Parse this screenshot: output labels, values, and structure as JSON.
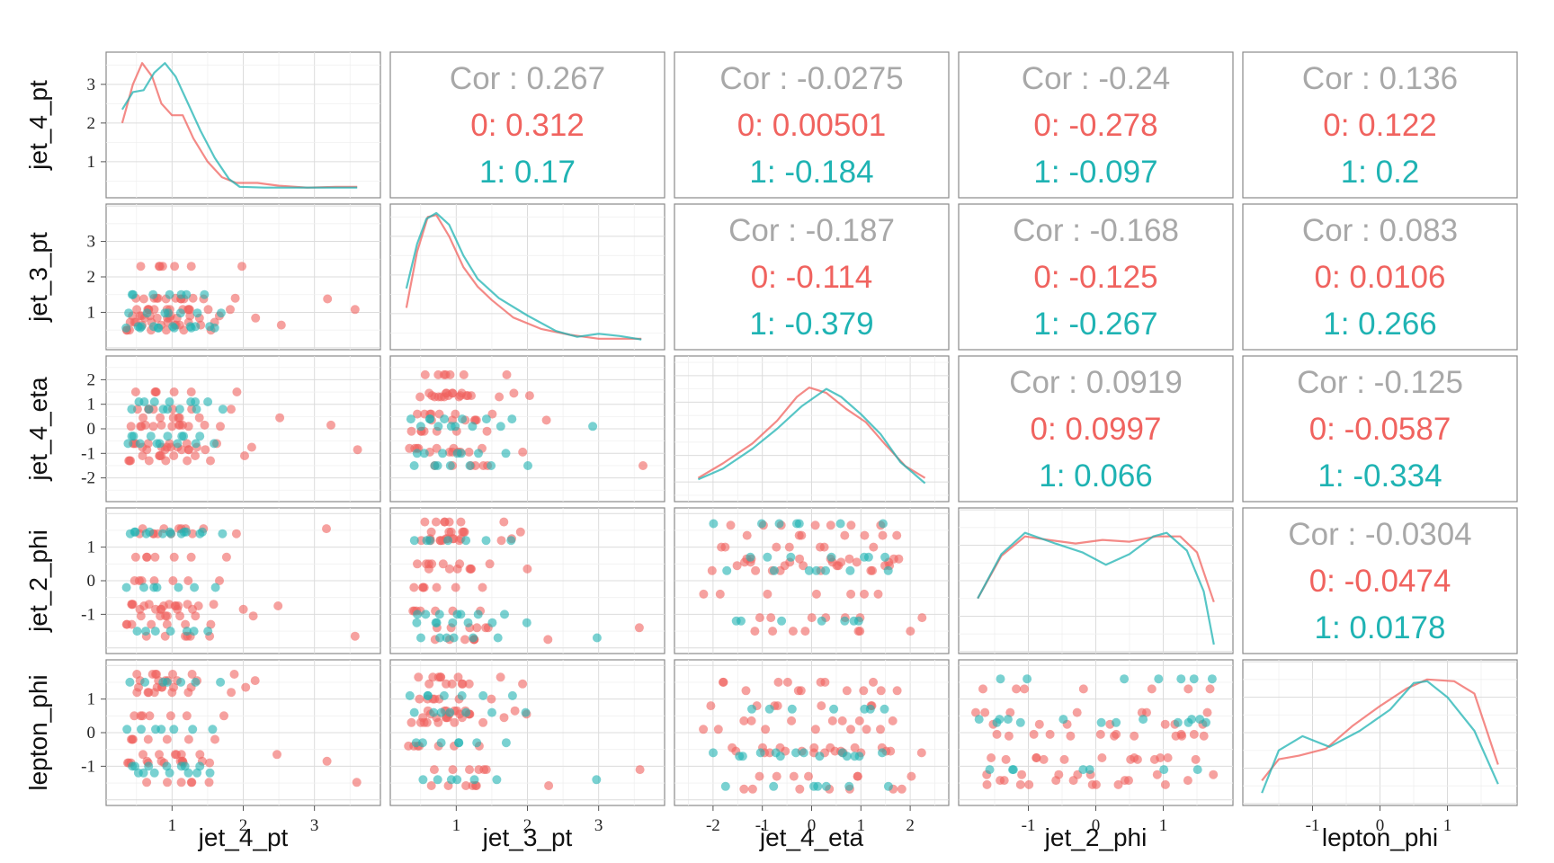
{
  "colors": {
    "group0": "#F0635F",
    "group1": "#1FB3B3",
    "cor_total": "#A8A8A8",
    "panel_border": "#8a8a8a",
    "grid": "#dcdcdc"
  },
  "chart_data": {
    "type": "scatter",
    "variables": [
      "jet_4_pt",
      "jet_3_pt",
      "jet_4_eta",
      "jet_2_phi",
      "lepton_phi"
    ],
    "groups": [
      "0",
      "1"
    ],
    "axis_ranges": {
      "jet_4_pt": [
        0.2,
        3.8
      ],
      "jet_3_pt": [
        0.2,
        3.8
      ],
      "jet_4_eta": [
        -2.6,
        2.6
      ],
      "jet_2_phi": [
        -1.9,
        1.9
      ],
      "lepton_phi": [
        -1.9,
        1.9
      ]
    },
    "density_ylims": {
      "jet_4_pt": [
        0.3,
        3.6
      ],
      "jet_3_pt": [
        0.3,
        3.6
      ],
      "jet_4_eta": [
        -2.4,
        2.4
      ],
      "jet_2_phi": [
        -1.8,
        1.8
      ],
      "lepton_phi": [
        -1.8,
        1.8
      ]
    },
    "ticks": {
      "jet_4_pt": [
        "1",
        "2",
        "3"
      ],
      "jet_3_pt": [
        "1",
        "2",
        "3"
      ],
      "jet_4_eta": [
        "-2",
        "-1",
        "0",
        "1",
        "2"
      ],
      "jet_2_phi": [
        "-1",
        "0",
        "1"
      ],
      "lepton_phi": [
        "-1",
        "0",
        "1"
      ]
    },
    "correlations": [
      {
        "pair": [
          "jet_4_pt",
          "jet_3_pt"
        ],
        "total": "Cor : 0.267",
        "group0": "0: 0.312",
        "group1": "1: 0.17"
      },
      {
        "pair": [
          "jet_4_pt",
          "jet_4_eta"
        ],
        "total": "Cor : -0.0275",
        "group0": "0: 0.00501",
        "group1": "1: -0.184"
      },
      {
        "pair": [
          "jet_4_pt",
          "jet_2_phi"
        ],
        "total": "Cor : -0.24",
        "group0": "0: -0.278",
        "group1": "1: -0.097"
      },
      {
        "pair": [
          "jet_4_pt",
          "lepton_phi"
        ],
        "total": "Cor : 0.136",
        "group0": "0: 0.122",
        "group1": "1: 0.2"
      },
      {
        "pair": [
          "jet_3_pt",
          "jet_4_eta"
        ],
        "total": "Cor : -0.187",
        "group0": "0: -0.114",
        "group1": "1: -0.379"
      },
      {
        "pair": [
          "jet_3_pt",
          "jet_2_phi"
        ],
        "total": "Cor : -0.168",
        "group0": "0: -0.125",
        "group1": "1: -0.267"
      },
      {
        "pair": [
          "jet_3_pt",
          "lepton_phi"
        ],
        "total": "Cor : 0.083",
        "group0": "0: 0.0106",
        "group1": "1: 0.266"
      },
      {
        "pair": [
          "jet_4_eta",
          "jet_2_phi"
        ],
        "total": "Cor : 0.0919",
        "group0": "0: 0.0997",
        "group1": "1: 0.066"
      },
      {
        "pair": [
          "jet_4_eta",
          "lepton_phi"
        ],
        "total": "Cor : -0.125",
        "group0": "0: -0.0587",
        "group1": "1: -0.334"
      },
      {
        "pair": [
          "jet_2_phi",
          "lepton_phi"
        ],
        "total": "Cor : -0.0304",
        "group0": "0: -0.0474",
        "group1": "1: 0.0178"
      }
    ],
    "densities": {
      "jet_4_pt": {
        "group0": [
          [
            0.3,
            2.0
          ],
          [
            0.45,
            3.0
          ],
          [
            0.58,
            3.55
          ],
          [
            0.72,
            3.2
          ],
          [
            0.85,
            2.5
          ],
          [
            1.0,
            2.2
          ],
          [
            1.15,
            2.2
          ],
          [
            1.3,
            1.6
          ],
          [
            1.5,
            1.0
          ],
          [
            1.7,
            0.6
          ],
          [
            1.9,
            0.45
          ],
          [
            2.2,
            0.45
          ],
          [
            2.5,
            0.38
          ],
          [
            2.9,
            0.33
          ],
          [
            3.3,
            0.35
          ],
          [
            3.6,
            0.35
          ]
        ],
        "group1": [
          [
            0.3,
            2.35
          ],
          [
            0.45,
            2.8
          ],
          [
            0.6,
            2.85
          ],
          [
            0.75,
            3.3
          ],
          [
            0.9,
            3.55
          ],
          [
            1.05,
            3.2
          ],
          [
            1.2,
            2.6
          ],
          [
            1.4,
            1.8
          ],
          [
            1.6,
            1.1
          ],
          [
            1.8,
            0.55
          ],
          [
            1.95,
            0.35
          ],
          [
            2.3,
            0.33
          ],
          [
            2.8,
            0.33
          ],
          [
            3.3,
            0.33
          ],
          [
            3.6,
            0.33
          ]
        ]
      },
      "jet_3_pt": {
        "group0": [
          [
            0.3,
            1.15
          ],
          [
            0.45,
            2.6
          ],
          [
            0.6,
            3.5
          ],
          [
            0.72,
            3.55
          ],
          [
            0.9,
            3.0
          ],
          [
            1.1,
            2.2
          ],
          [
            1.3,
            1.7
          ],
          [
            1.5,
            1.35
          ],
          [
            1.8,
            0.9
          ],
          [
            2.2,
            0.6
          ],
          [
            2.6,
            0.45
          ],
          [
            3.0,
            0.35
          ],
          [
            3.3,
            0.35
          ],
          [
            3.6,
            0.35
          ]
        ],
        "group1": [
          [
            0.3,
            1.65
          ],
          [
            0.45,
            2.8
          ],
          [
            0.58,
            3.45
          ],
          [
            0.72,
            3.6
          ],
          [
            0.9,
            3.3
          ],
          [
            1.1,
            2.5
          ],
          [
            1.3,
            1.9
          ],
          [
            1.6,
            1.4
          ],
          [
            2.0,
            0.95
          ],
          [
            2.4,
            0.55
          ],
          [
            2.7,
            0.4
          ],
          [
            3.0,
            0.48
          ],
          [
            3.3,
            0.42
          ],
          [
            3.6,
            0.33
          ]
        ]
      },
      "jet_4_eta": {
        "group0": [
          [
            -2.3,
            -1.85
          ],
          [
            -1.8,
            -1.3
          ],
          [
            -1.2,
            -0.55
          ],
          [
            -0.7,
            0.3
          ],
          [
            -0.3,
            1.2
          ],
          [
            -0.05,
            1.55
          ],
          [
            0.3,
            1.35
          ],
          [
            0.7,
            0.75
          ],
          [
            1.1,
            0.25
          ],
          [
            1.5,
            -0.6
          ],
          [
            1.9,
            -1.4
          ],
          [
            2.3,
            -1.85
          ]
        ],
        "group1": [
          [
            -2.3,
            -1.9
          ],
          [
            -1.8,
            -1.5
          ],
          [
            -1.2,
            -0.75
          ],
          [
            -0.7,
            0.0
          ],
          [
            -0.2,
            0.85
          ],
          [
            0.3,
            1.5
          ],
          [
            0.6,
            1.2
          ],
          [
            1.0,
            0.55
          ],
          [
            1.4,
            -0.2
          ],
          [
            1.8,
            -1.25
          ],
          [
            2.3,
            -2.05
          ]
        ]
      },
      "jet_2_phi": {
        "group0": [
          [
            -1.75,
            -0.5
          ],
          [
            -1.4,
            0.7
          ],
          [
            -1.05,
            1.25
          ],
          [
            -0.7,
            1.15
          ],
          [
            -0.3,
            1.05
          ],
          [
            0.1,
            1.15
          ],
          [
            0.5,
            1.1
          ],
          [
            0.9,
            1.25
          ],
          [
            1.25,
            1.25
          ],
          [
            1.5,
            0.8
          ],
          [
            1.75,
            -0.6
          ]
        ],
        "group1": [
          [
            -1.75,
            -0.5
          ],
          [
            -1.4,
            0.75
          ],
          [
            -1.05,
            1.35
          ],
          [
            -0.6,
            1.05
          ],
          [
            -0.2,
            0.8
          ],
          [
            0.15,
            0.45
          ],
          [
            0.5,
            0.75
          ],
          [
            0.85,
            1.25
          ],
          [
            1.05,
            1.35
          ],
          [
            1.35,
            0.85
          ],
          [
            1.6,
            -0.3
          ],
          [
            1.75,
            -1.8
          ]
        ]
      },
      "lepton_phi": {
        "group0": [
          [
            -1.75,
            -1.35
          ],
          [
            -1.5,
            -0.75
          ],
          [
            -1.2,
            -0.65
          ],
          [
            -0.8,
            -0.45
          ],
          [
            -0.4,
            0.2
          ],
          [
            0.0,
            0.75
          ],
          [
            0.4,
            1.25
          ],
          [
            0.7,
            1.5
          ],
          [
            1.1,
            1.45
          ],
          [
            1.4,
            1.1
          ],
          [
            1.75,
            -0.9
          ]
        ],
        "group1": [
          [
            -1.75,
            -1.7
          ],
          [
            -1.5,
            -0.5
          ],
          [
            -1.15,
            -0.1
          ],
          [
            -0.75,
            -0.4
          ],
          [
            -0.3,
            0.05
          ],
          [
            0.15,
            0.65
          ],
          [
            0.5,
            1.4
          ],
          [
            0.7,
            1.45
          ],
          [
            1.0,
            1.0
          ],
          [
            1.4,
            0.05
          ],
          [
            1.75,
            -1.45
          ]
        ]
      }
    },
    "scatter_points": {
      "jet_4_pt": {
        "group0": [
          0.36,
          0.42,
          0.45,
          0.5,
          0.52,
          0.55,
          0.58,
          0.6,
          0.62,
          0.65,
          0.68,
          0.7,
          0.72,
          0.75,
          0.78,
          0.8,
          0.82,
          0.85,
          0.88,
          0.9,
          0.92,
          0.95,
          0.98,
          1.0,
          1.02,
          1.05,
          1.08,
          1.1,
          1.12,
          1.15,
          1.18,
          1.2,
          1.22,
          1.25,
          1.28,
          1.3,
          1.35,
          1.4,
          1.45,
          1.5,
          1.55,
          1.6,
          1.7,
          1.8,
          1.9,
          2.0,
          2.15,
          2.5,
          3.2,
          3.6,
          0.4,
          0.48,
          0.56,
          0.64,
          0.74,
          0.86,
          0.96,
          1.06,
          1.16,
          1.26,
          0.38,
          0.46,
          0.54,
          0.66,
          0.76,
          0.84,
          0.94,
          1.04,
          1.14,
          1.24
        ],
        "group1": [
          0.35,
          0.4,
          0.46,
          0.52,
          0.58,
          0.64,
          0.7,
          0.76,
          0.82,
          0.88,
          0.94,
          1.0,
          1.06,
          1.12,
          1.18,
          1.24,
          1.3,
          1.36,
          1.42,
          1.5,
          1.6,
          1.7,
          0.44,
          0.6,
          0.78,
          0.96,
          1.14,
          1.32
        ]
      },
      "jet_3_pt": {
        "group0": [
          0.36,
          0.4,
          0.45,
          0.5,
          0.55,
          0.6,
          0.62,
          0.65,
          0.68,
          0.7,
          0.72,
          0.75,
          0.78,
          0.8,
          0.82,
          0.85,
          0.88,
          0.9,
          0.92,
          0.95,
          0.98,
          1.0,
          1.02,
          1.05,
          1.08,
          1.1,
          1.15,
          1.2,
          1.25,
          1.3,
          1.35,
          1.4,
          1.5,
          1.6,
          1.7,
          1.8,
          1.9,
          2.0,
          2.3,
          3.6,
          0.42,
          0.52,
          0.58,
          0.66,
          0.74,
          0.84,
          0.94,
          1.04,
          1.12,
          1.22,
          0.44,
          0.54,
          0.64,
          0.76,
          0.86,
          0.96,
          1.06,
          1.18,
          1.28,
          1.38,
          0.48,
          0.56,
          0.68,
          0.78,
          0.88,
          0.98,
          1.08,
          1.16,
          1.26,
          1.45
        ],
        "group1": [
          0.38,
          0.44,
          0.5,
          0.56,
          0.62,
          0.68,
          0.74,
          0.8,
          0.86,
          0.92,
          0.98,
          1.04,
          1.1,
          1.16,
          1.22,
          1.3,
          1.4,
          1.5,
          1.6,
          1.7,
          1.8,
          2.0,
          2.95,
          0.46,
          0.6,
          0.76,
          0.9,
          1.06
        ]
      },
      "jet_4_eta": {
        "group0": [
          -2.2,
          -2.0,
          -1.8,
          -1.6,
          -1.5,
          -1.4,
          -1.3,
          -1.2,
          -1.1,
          -1.0,
          -0.9,
          -0.8,
          -0.7,
          -0.6,
          -0.5,
          -0.4,
          -0.3,
          -0.2,
          -0.1,
          0.0,
          0.1,
          0.2,
          0.3,
          0.4,
          0.5,
          0.6,
          0.7,
          0.8,
          0.9,
          1.0,
          1.1,
          1.2,
          1.3,
          1.4,
          1.5,
          1.6,
          1.7,
          1.8,
          2.0,
          2.2,
          -1.9,
          -1.1,
          -0.5,
          0.05,
          0.55,
          0.95,
          1.45,
          -1.35,
          -0.75,
          0.25,
          0.75,
          1.25,
          -1.75,
          -0.95,
          -0.15,
          0.45,
          1.05,
          1.65,
          -0.35,
          0.65,
          1.35,
          -0.65,
          0.15,
          0.85,
          1.55,
          -1.25,
          -0.25,
          0.35,
          0.95,
          -0.85
        ],
        "group1": [
          -2.0,
          -1.7,
          -1.4,
          -1.2,
          -1.0,
          -0.8,
          -0.6,
          -0.4,
          -0.2,
          0.0,
          0.2,
          0.4,
          0.6,
          0.8,
          1.0,
          1.2,
          1.4,
          1.6,
          -1.5,
          -0.9,
          -0.3,
          0.3,
          0.9,
          1.5,
          -0.7,
          0.1,
          0.7,
          1.1
        ]
      },
      "jet_2_phi": {
        "group0": [
          -1.75,
          -1.7,
          -1.65,
          -1.6,
          -1.55,
          -1.5,
          -1.45,
          -1.4,
          -1.35,
          -1.3,
          -1.25,
          -1.2,
          -1.1,
          -1.0,
          -0.9,
          -0.8,
          -0.7,
          -0.6,
          -0.5,
          -0.4,
          -0.3,
          -0.2,
          -0.1,
          0.0,
          0.1,
          0.2,
          0.3,
          0.4,
          0.5,
          0.6,
          0.7,
          0.8,
          0.9,
          1.0,
          1.1,
          1.2,
          1.3,
          1.4,
          1.5,
          1.6,
          1.65,
          1.7,
          1.75,
          -1.15,
          -0.85,
          -0.45,
          0.05,
          0.45,
          0.85,
          1.25,
          -1.65,
          -1.05,
          -0.55,
          -0.05,
          0.55,
          1.05,
          1.45,
          -1.35,
          -0.75,
          0.25,
          0.75,
          1.35,
          -0.25,
          0.35,
          0.95,
          1.55,
          -0.95,
          -0.35,
          0.65,
          1.15
        ],
        "group1": [
          -1.7,
          -1.6,
          -1.5,
          -1.4,
          -1.3,
          -1.2,
          -1.1,
          -1.0,
          -0.5,
          -0.2,
          0.1,
          0.4,
          0.7,
          1.0,
          1.2,
          1.3,
          1.4,
          1.5,
          1.6,
          1.7,
          -1.45,
          -1.25,
          1.35,
          1.45,
          1.55,
          -0.1,
          0.3,
          0.9
        ]
      },
      "lepton_phi": {
        "group0": [
          -1.72,
          -1.68,
          -1.62,
          -1.58,
          -1.52,
          -1.48,
          -1.42,
          -1.38,
          -1.3,
          -1.2,
          -1.1,
          -1.0,
          -0.9,
          -0.8,
          -0.7,
          -0.6,
          -0.5,
          -0.4,
          -0.3,
          -0.2,
          -0.1,
          0.0,
          0.1,
          0.2,
          0.3,
          0.4,
          0.5,
          0.6,
          0.7,
          0.8,
          0.9,
          1.0,
          1.1,
          1.2,
          1.3,
          1.4,
          1.5,
          1.6,
          1.65,
          1.7,
          1.74,
          -1.25,
          -0.95,
          -0.45,
          0.05,
          0.45,
          0.95,
          1.35,
          -1.55,
          -1.05,
          -0.55,
          0.15,
          0.65,
          1.15,
          1.55,
          -0.75,
          -0.15,
          0.35,
          0.85,
          1.45,
          -1.35,
          -0.65,
          0.25,
          0.75,
          1.25,
          -0.25,
          0.55,
          1.05,
          -0.85,
          -0.05
        ],
        "group1": [
          -1.7,
          -1.6,
          -1.5,
          -1.4,
          -1.3,
          -1.2,
          -1.1,
          -0.9,
          -0.7,
          -0.5,
          -0.3,
          -0.1,
          0.1,
          0.3,
          0.5,
          0.7,
          0.9,
          1.1,
          1.3,
          1.5,
          1.6,
          1.7,
          -0.6,
          0.0,
          0.6,
          1.2,
          -1.0,
          0.4
        ]
      }
    }
  }
}
